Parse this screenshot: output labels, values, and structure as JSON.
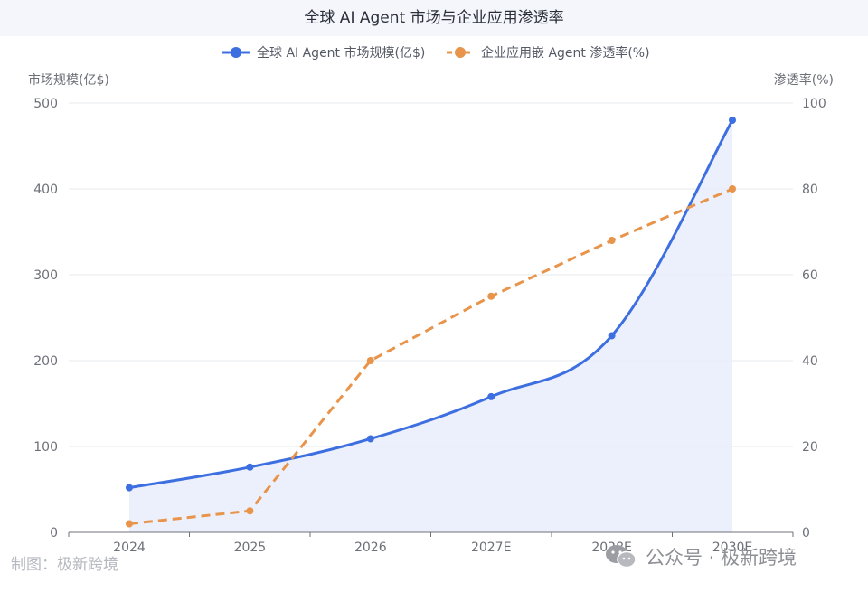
{
  "chart_data": {
    "type": "line",
    "title": "全球 AI Agent 市场与企业应用渗透率",
    "categories": [
      "2024",
      "2025",
      "2026",
      "2027E",
      "2028E",
      "2030E"
    ],
    "series": [
      {
        "name": "全球 AI Agent 市场规模(亿$)",
        "axis": "left",
        "values": [
          52,
          76,
          109,
          158,
          229,
          480
        ],
        "color": "#3d6fe0",
        "style": "solid-smooth-area"
      },
      {
        "name": "企业应用嵌 Agent 渗透率(%)",
        "axis": "right",
        "values": [
          2,
          5,
          40,
          55,
          68,
          80
        ],
        "color": "#e8944a",
        "style": "dashed"
      }
    ],
    "y_left": {
      "label": "市场规模(亿$)",
      "lim": [
        0,
        500
      ],
      "ticks": [
        "0",
        "100",
        "200",
        "300",
        "400",
        "500"
      ]
    },
    "y_right": {
      "label": "渗透率(%)",
      "lim": [
        0,
        100
      ],
      "ticks": [
        "0",
        "20",
        "40",
        "60",
        "80",
        "100"
      ]
    },
    "grid": true,
    "legend_position": "top-center",
    "area_fill_color": "#e9edfb"
  },
  "credit": "制图：极新跨境",
  "watermark": {
    "icon": "wechat-icon",
    "text": "公众号 · 极新跨境"
  }
}
